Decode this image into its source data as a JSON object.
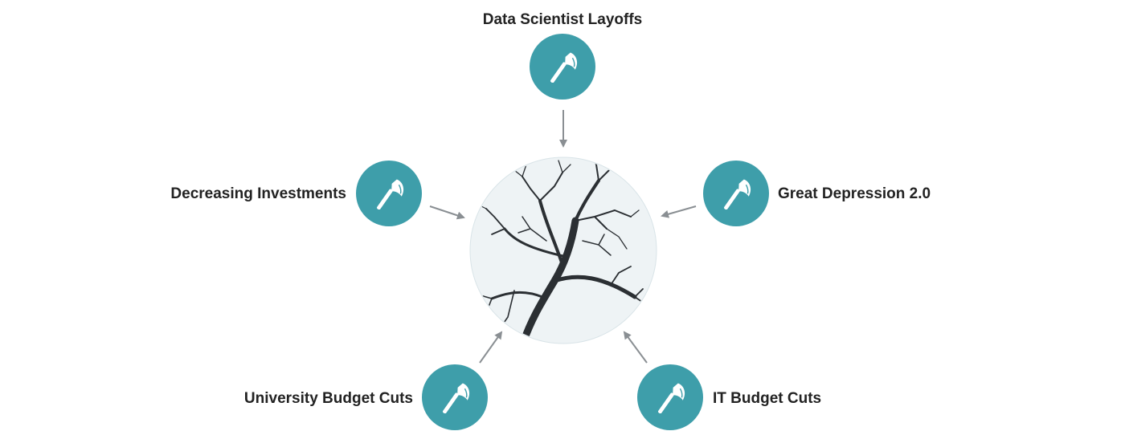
{
  "diagram": {
    "center": {
      "icon": "bare-tree-photo",
      "icon_bg": "#eef3f5"
    },
    "nodes": [
      {
        "id": "top",
        "label": "Data Scientist Layoffs",
        "icon": "axe-icon"
      },
      {
        "id": "left",
        "label": "Decreasing Investments",
        "icon": "axe-icon"
      },
      {
        "id": "right",
        "label": "Great Depression 2.0",
        "icon": "axe-icon"
      },
      {
        "id": "bottom-left",
        "label": "University Budget Cuts",
        "icon": "axe-icon"
      },
      {
        "id": "bottom-right",
        "label": "IT Budget Cuts",
        "icon": "axe-icon"
      }
    ],
    "colors": {
      "node_fill": "#3e9eaa",
      "arrow": "#8a8f93",
      "text": "#222222"
    }
  }
}
